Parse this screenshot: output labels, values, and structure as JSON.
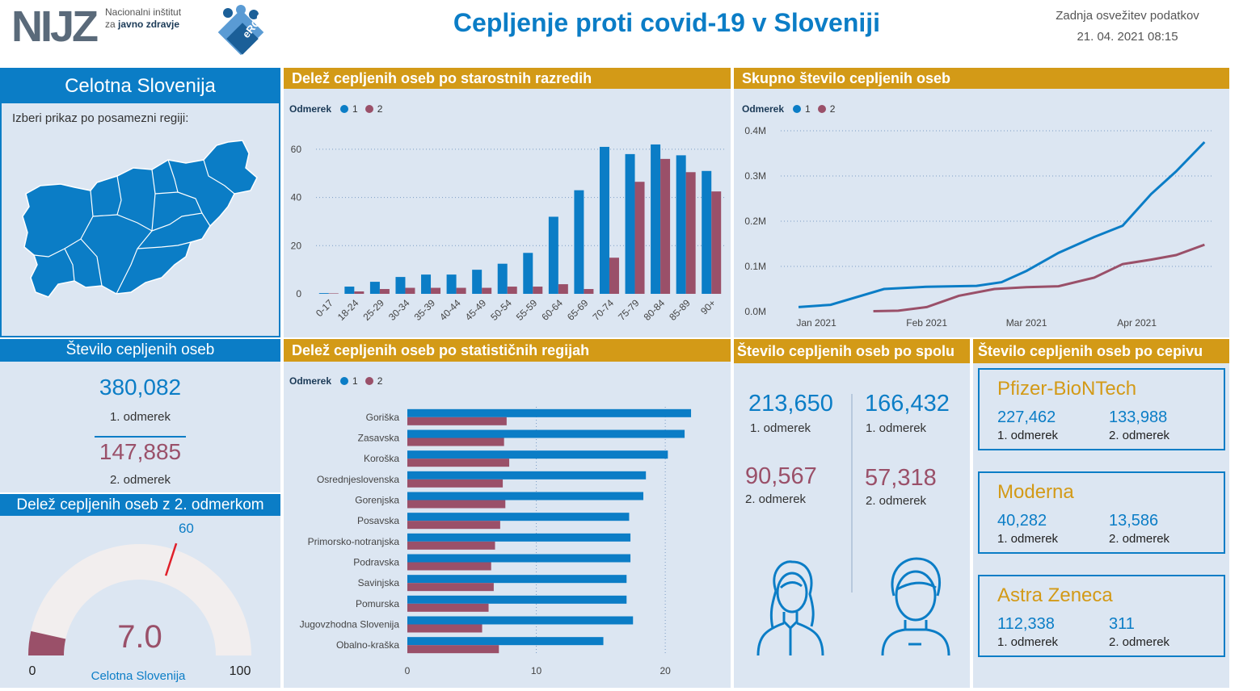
{
  "header": {
    "org_line1": "Nacionalni inštitut",
    "org_line2_prefix": "za ",
    "org_line2_bold": "javno zdravje",
    "logo_text": "NIJZ",
    "erco_text": "eRCO",
    "title": "Cepljenje proti covid-19 v Sloveniji",
    "refresh_label": "Zadnja osvežitev podatkov",
    "refresh_value": "21. 04. 2021 08:15"
  },
  "colors": {
    "dose1": "#0b7dc6",
    "dose2": "#9a5069",
    "gold": "#d39a17",
    "panel": "#dce6f2"
  },
  "region_panel": {
    "title": "Celotna Slovenija",
    "hint": "Izberi prikaz po posamezni regiji:"
  },
  "legend": {
    "label": "Odmerek",
    "dose1": "1",
    "dose2": "2"
  },
  "age_chart": {
    "title": "Delež cepljenih oseb po starostnih razredih",
    "chart_data": {
      "type": "bar",
      "categories": [
        "0-17",
        "18-24",
        "25-29",
        "30-34",
        "35-39",
        "40-44",
        "45-49",
        "50-54",
        "55-59",
        "60-64",
        "65-69",
        "70-74",
        "75-79",
        "80-84",
        "85-89",
        "90+"
      ],
      "series": [
        {
          "name": "1",
          "values": [
            0.3,
            3,
            5,
            7,
            8,
            8,
            10,
            12.5,
            17,
            32,
            43,
            61,
            58,
            62,
            57.5,
            51
          ]
        },
        {
          "name": "2",
          "values": [
            0.2,
            1,
            2,
            2.5,
            2.5,
            2.5,
            2.5,
            3,
            3,
            4,
            2,
            15,
            46.5,
            56,
            50.5,
            42.5
          ]
        }
      ],
      "y_ticks": [
        "0",
        "20",
        "40",
        "60"
      ],
      "ylim": [
        0,
        65
      ]
    }
  },
  "total_chart": {
    "title": "Skupno število cepljenih oseb",
    "chart_data": {
      "type": "line",
      "x_ticks": [
        "Jan 2021",
        "Feb 2021",
        "Mar 2021",
        "Apr 2021"
      ],
      "y_ticks": [
        "0.0M",
        "0.1M",
        "0.2M",
        "0.3M",
        "0.4M"
      ],
      "ylim": [
        0,
        0.4
      ],
      "series": [
        {
          "name": "1",
          "x": [
            "2020-12-27",
            "2021-01-05",
            "2021-01-20",
            "2021-02-01",
            "2021-02-15",
            "2021-02-22",
            "2021-03-01",
            "2021-03-10",
            "2021-03-20",
            "2021-03-28",
            "2021-04-05",
            "2021-04-12",
            "2021-04-20"
          ],
          "y": [
            0.01,
            0.015,
            0.05,
            0.055,
            0.057,
            0.065,
            0.09,
            0.13,
            0.165,
            0.19,
            0.26,
            0.31,
            0.375
          ]
        },
        {
          "name": "2",
          "x": [
            "2021-01-17",
            "2021-01-24",
            "2021-02-01",
            "2021-02-10",
            "2021-02-20",
            "2021-03-01",
            "2021-03-10",
            "2021-03-20",
            "2021-03-28",
            "2021-04-05",
            "2021-04-12",
            "2021-04-20"
          ],
          "y": [
            0.001,
            0.002,
            0.01,
            0.035,
            0.05,
            0.054,
            0.056,
            0.075,
            0.105,
            0.115,
            0.125,
            0.148
          ]
        }
      ]
    }
  },
  "vaccinated_count": {
    "title": "Število cepljenih oseb",
    "dose1_value": "380,082",
    "dose1_label": "1. odmerek",
    "dose2_value": "147,885",
    "dose2_label": "2. odmerek"
  },
  "gauge": {
    "title": "Delež cepljenih oseb z 2. odmerkom",
    "value": 7.0,
    "value_text": "7.0",
    "target_text": "60",
    "min_text": "0",
    "max_text": "100",
    "caption": "Celotna Slovenija",
    "target": 60,
    "min": 0,
    "max": 100
  },
  "region_chart": {
    "title": "Delež cepljenih oseb po statističnih regijah",
    "chart_data": {
      "type": "bar",
      "orientation": "horizontal",
      "categories": [
        "Goriška",
        "Zasavska",
        "Koroška",
        "Osrednjeslovenska",
        "Gorenjska",
        "Posavska",
        "Primorsko-notranjska",
        "Podravska",
        "Savinjska",
        "Pomurska",
        "Jugovzhodna Slovenija",
        "Obalno-kraška"
      ],
      "series": [
        {
          "name": "1",
          "values": [
            22,
            21.5,
            20.2,
            18.5,
            18.3,
            17.2,
            17.3,
            17.3,
            17,
            17,
            17.5,
            15.2
          ]
        },
        {
          "name": "2",
          "values": [
            7.7,
            7.5,
            7.9,
            7.4,
            7.6,
            7.2,
            6.8,
            6.5,
            6.7,
            6.3,
            5.8,
            7.1
          ]
        }
      ],
      "x_ticks": [
        "0",
        "10",
        "20"
      ],
      "xlim": [
        0,
        23
      ]
    }
  },
  "gender": {
    "title": "Število cepljenih oseb po spolu",
    "female_dose1": "213,650",
    "female_dose1_label": "1. odmerek",
    "female_dose2": "90,567",
    "female_dose2_label": "2. odmerek",
    "male_dose1": "166,432",
    "male_dose1_label": "1. odmerek",
    "male_dose2": "57,318",
    "male_dose2_label": "2. odmerek"
  },
  "vaccines": {
    "title": "Število cepljenih oseb po cepivu",
    "items": [
      {
        "name": "Pfizer-BioNTech",
        "dose1": "227,462",
        "dose1_label": "1. odmerek",
        "dose2": "133,988",
        "dose2_label": "2. odmerek"
      },
      {
        "name": "Moderna",
        "dose1": "40,282",
        "dose1_label": "1. odmerek",
        "dose2": "13,586",
        "dose2_label": "2. odmerek"
      },
      {
        "name": "Astra Zeneca",
        "dose1": "112,338",
        "dose1_label": "1. odmerek",
        "dose2": "311",
        "dose2_label": "2. odmerek"
      }
    ]
  }
}
